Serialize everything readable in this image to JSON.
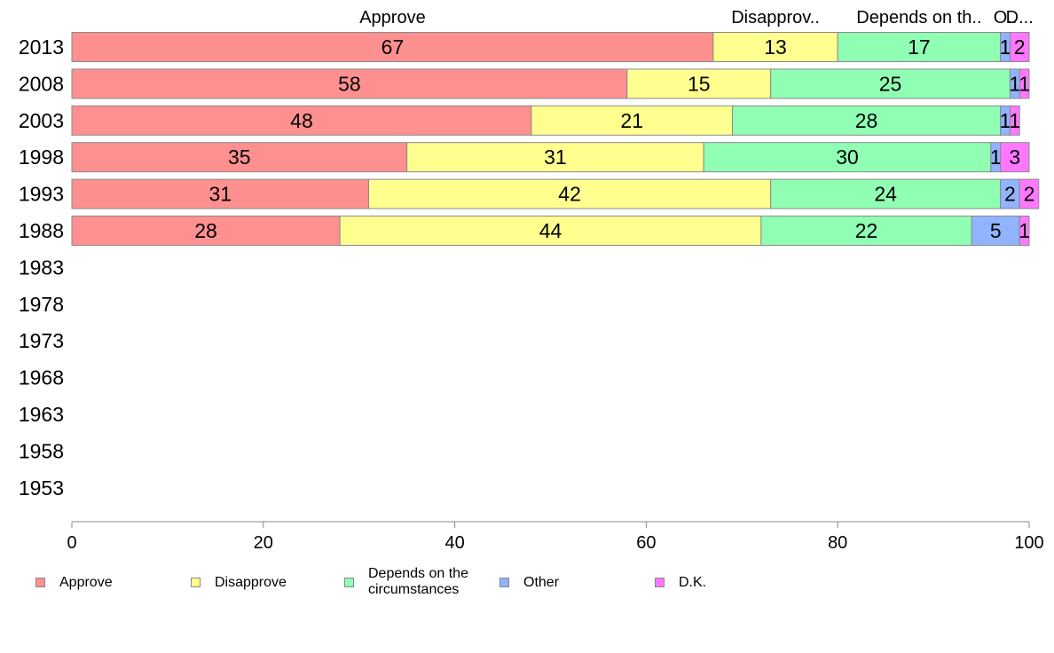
{
  "chart_data": {
    "type": "bar",
    "orientation": "horizontal",
    "stacked": true,
    "categories": [
      "2013",
      "2008",
      "2003",
      "1998",
      "1993",
      "1988",
      "1983",
      "1978",
      "1973",
      "1968",
      "1963",
      "1958",
      "1953"
    ],
    "series": [
      {
        "name": "Approve",
        "color": "#ff9090",
        "values": [
          67,
          58,
          48,
          35,
          31,
          28,
          null,
          null,
          null,
          null,
          null,
          null,
          null
        ]
      },
      {
        "name": "Disapprove",
        "color": "#ffff90",
        "values": [
          13,
          15,
          21,
          31,
          42,
          44,
          null,
          null,
          null,
          null,
          null,
          null,
          null
        ]
      },
      {
        "name": "Depends on the circumstances",
        "color": "#90ffb4",
        "values": [
          17,
          25,
          28,
          30,
          24,
          22,
          null,
          null,
          null,
          null,
          null,
          null,
          null
        ]
      },
      {
        "name": "Other",
        "color": "#90b4ff",
        "values": [
          1,
          1,
          1,
          1,
          2,
          5,
          null,
          null,
          null,
          null,
          null,
          null,
          null
        ]
      },
      {
        "name": "D.K.",
        "color": "#ff78ff",
        "values": [
          2,
          1,
          1,
          3,
          2,
          1,
          null,
          null,
          null,
          null,
          null,
          null,
          null
        ]
      }
    ],
    "top_labels": [
      "Approve",
      "Disapprov..",
      "Depends on th..",
      "O..",
      "D..."
    ],
    "xticks": [
      0,
      20,
      40,
      60,
      80,
      100
    ],
    "xlim": [
      0,
      100
    ],
    "title": "",
    "xlabel": "",
    "ylabel": "",
    "legend_position": "bottom",
    "grid": false
  },
  "legend": [
    {
      "label": "Approve",
      "color": "#ff9090"
    },
    {
      "label": "Disapprove",
      "color": "#ffff90"
    },
    {
      "label": "Depends on the circumstances",
      "color": "#90ffb4"
    },
    {
      "label": "Other",
      "color": "#90b4ff"
    },
    {
      "label": "D.K.",
      "color": "#ff78ff"
    }
  ]
}
